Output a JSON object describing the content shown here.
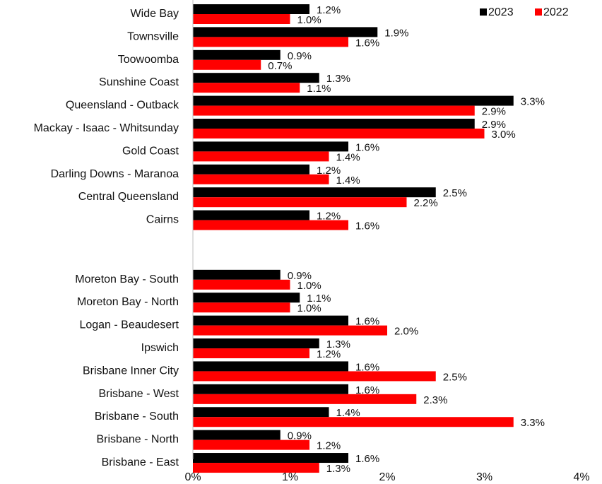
{
  "chart_data": {
    "type": "bar",
    "orientation": "horizontal",
    "categories": [
      "Wide Bay",
      "Townsville",
      "Toowoomba",
      "Sunshine Coast",
      "Queensland - Outback",
      "Mackay - Isaac - Whitsunday",
      "Gold Coast",
      "Darling Downs - Maranoa",
      "Central Queensland",
      "Cairns",
      "Moreton Bay - South",
      "Moreton Bay - North",
      "Logan - Beaudesert",
      "Ipswich",
      "Brisbane Inner City",
      "Brisbane - West",
      "Brisbane - South",
      "Brisbane - North",
      "Brisbane - East"
    ],
    "series": [
      {
        "name": "2023",
        "color": "#000000",
        "values": [
          1.2,
          1.9,
          0.9,
          1.3,
          3.3,
          2.9,
          1.6,
          1.2,
          2.5,
          1.2,
          0.9,
          1.1,
          1.6,
          1.3,
          1.6,
          1.6,
          1.4,
          0.9,
          1.6
        ],
        "labels": [
          "1.2%",
          "1.9%",
          "0.9%",
          "1.3%",
          "3.3%",
          "2.9%",
          "1.6%",
          "1.2%",
          "2.5%",
          "1.2%",
          "0.9%",
          "1.1%",
          "1.6%",
          "1.3%",
          "1.6%",
          "1.6%",
          "1.4%",
          "0.9%",
          "1.6%"
        ]
      },
      {
        "name": "2022",
        "color": "#ff0000",
        "values": [
          1.0,
          1.6,
          0.7,
          1.1,
          2.9,
          3.0,
          1.4,
          1.4,
          2.2,
          1.6,
          1.0,
          1.0,
          2.0,
          1.2,
          2.5,
          2.3,
          3.3,
          1.2,
          1.3
        ],
        "labels": [
          "1.0%",
          "1.6%",
          "0.7%",
          "1.1%",
          "2.9%",
          "3.0%",
          "1.4%",
          "1.4%",
          "2.2%",
          "1.6%",
          "1.0%",
          "1.0%",
          "2.0%",
          "1.2%",
          "2.5%",
          "2.3%",
          "3.3%",
          "1.2%",
          "1.3%"
        ]
      }
    ],
    "xlim": [
      0,
      4
    ],
    "xticks": [
      "0%",
      "1%",
      "2%",
      "3%",
      "4%"
    ],
    "legend": {
      "position": "top-right",
      "entries": [
        "2023",
        "2022"
      ]
    },
    "grid": false
  }
}
